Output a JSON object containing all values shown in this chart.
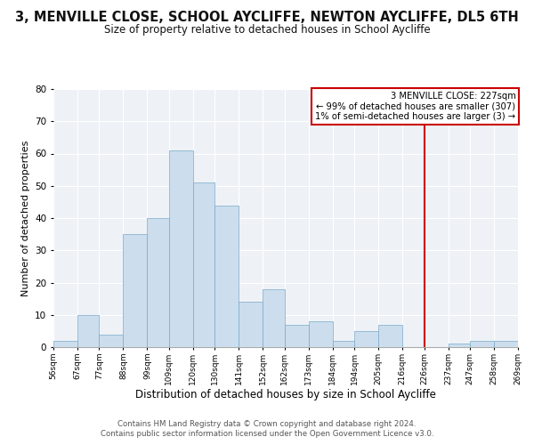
{
  "title": "3, MENVILLE CLOSE, SCHOOL AYCLIFFE, NEWTON AYCLIFFE, DL5 6TH",
  "subtitle": "Size of property relative to detached houses in School Aycliffe",
  "xlabel": "Distribution of detached houses by size in School Aycliffe",
  "ylabel": "Number of detached properties",
  "bar_color": "#ccdded",
  "bar_edge_color": "#7aaac8",
  "bin_edges": [
    56,
    67,
    77,
    88,
    99,
    109,
    120,
    130,
    141,
    152,
    162,
    173,
    184,
    194,
    205,
    216,
    226,
    237,
    247,
    258,
    269
  ],
  "bar_heights": [
    2,
    10,
    4,
    35,
    40,
    61,
    51,
    44,
    14,
    18,
    7,
    8,
    2,
    5,
    7,
    0,
    0,
    1,
    2,
    2
  ],
  "tick_labels": [
    "56sqm",
    "67sqm",
    "77sqm",
    "88sqm",
    "99sqm",
    "109sqm",
    "120sqm",
    "130sqm",
    "141sqm",
    "152sqm",
    "162sqm",
    "173sqm",
    "184sqm",
    "194sqm",
    "205sqm",
    "216sqm",
    "226sqm",
    "237sqm",
    "247sqm",
    "258sqm",
    "269sqm"
  ],
  "vline_x": 226,
  "vline_color": "#cc0000",
  "ylim": [
    0,
    80
  ],
  "annotation_title": "3 MENVILLE CLOSE: 227sqm",
  "annotation_line1": "← 99% of detached houses are smaller (307)",
  "annotation_line2": "1% of semi-detached houses are larger (3) →",
  "annotation_box_color": "#cc0000",
  "footer1": "Contains HM Land Registry data © Crown copyright and database right 2024.",
  "footer2": "Contains public sector information licensed under the Open Government Licence v3.0.",
  "title_fontsize": 10.5,
  "subtitle_fontsize": 8.5,
  "xlabel_fontsize": 8.5,
  "ylabel_fontsize": 8,
  "bg_color": "#eef2f7",
  "grid_color": "#ffffff"
}
